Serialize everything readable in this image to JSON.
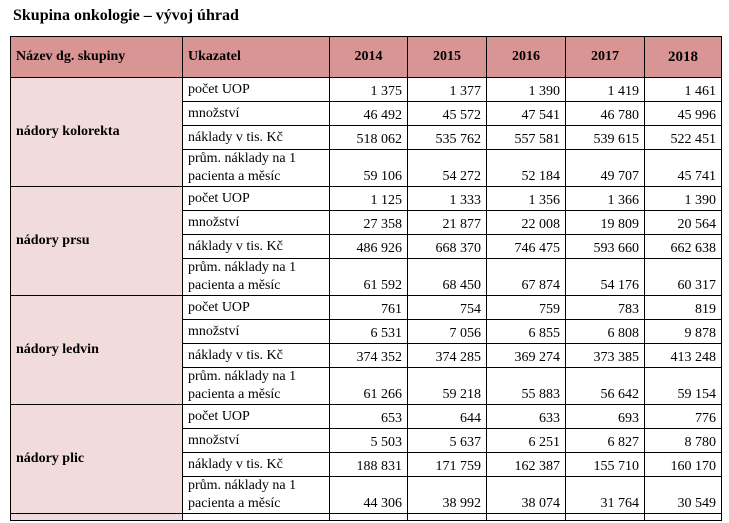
{
  "title": "Skupina onkologie – vývoj úhrad",
  "headers": {
    "group": "Název dg. skupiny",
    "indicator": "Ukazatel",
    "years": [
      "2014",
      "2015",
      "2016",
      "2017",
      "2018"
    ]
  },
  "indicators": [
    "počet UOP",
    "množství",
    "náklady v tis. Kč",
    "prům. náklady na 1 pacienta a měsíc"
  ],
  "groups": [
    {
      "name": "nádory kolorekta",
      "rows": [
        [
          "1 375",
          "1 377",
          "1 390",
          "1 419",
          "1 461"
        ],
        [
          "46 492",
          "45 572",
          "47 541",
          "46 780",
          "45 996"
        ],
        [
          "518 062",
          "535 762",
          "557 581",
          "539 615",
          "522 451"
        ],
        [
          "59 106",
          "54 272",
          "52 184",
          "49 707",
          "45 741"
        ]
      ]
    },
    {
      "name": "nádory prsu",
      "rows": [
        [
          "1 125",
          "1 333",
          "1 356",
          "1 366",
          "1 390"
        ],
        [
          "27 358",
          "21 877",
          "22 008",
          "19 809",
          "20 564"
        ],
        [
          "486 926",
          "668 370",
          "746 475",
          "593 660",
          "662 638"
        ],
        [
          "61 592",
          "68 450",
          "67 874",
          "54 176",
          "60 317"
        ]
      ]
    },
    {
      "name": "nádory ledvin",
      "rows": [
        [
          "761",
          "754",
          "759",
          "783",
          "819"
        ],
        [
          "6 531",
          "7 056",
          "6 855",
          "6 808",
          "9 878"
        ],
        [
          "374 352",
          "374 285",
          "369 274",
          "373 385",
          "413 248"
        ],
        [
          "61 266",
          "59 218",
          "55 883",
          "56 642",
          "59 154"
        ]
      ]
    },
    {
      "name": "nádory plic",
      "rows": [
        [
          "653",
          "644",
          "633",
          "693",
          "776"
        ],
        [
          "5 503",
          "5 637",
          "6 251",
          "6 827",
          "8 780"
        ],
        [
          "188 831",
          "171 759",
          "162 387",
          "155 710",
          "160 170"
        ],
        [
          "44 306",
          "38 992",
          "38 074",
          "31 764",
          "30 549"
        ]
      ]
    }
  ]
}
